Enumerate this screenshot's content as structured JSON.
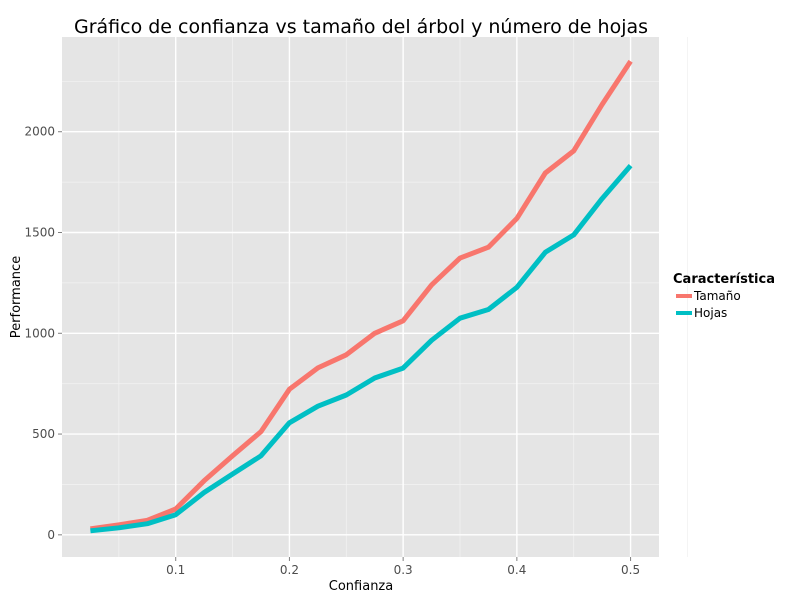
{
  "chart_data": {
    "type": "line",
    "title": "Gráfico de confianza vs tamaño del árbol y número de hojas",
    "xlabel": "Confianza",
    "ylabel": "Performance",
    "x": [
      0.025,
      0.05,
      0.075,
      0.1,
      0.125,
      0.15,
      0.175,
      0.2,
      0.225,
      0.25,
      0.275,
      0.3,
      0.325,
      0.35,
      0.375,
      0.4,
      0.425,
      0.45,
      0.475,
      0.5
    ],
    "xlim": [
      0.0,
      0.525
    ],
    "ylim": [
      -110,
      2470
    ],
    "xticks": [
      0.1,
      0.2,
      0.3,
      0.4,
      0.5
    ],
    "xtick_labels": [
      "0.1",
      "0.2",
      "0.3",
      "0.4",
      "0.5"
    ],
    "yticks": [
      0,
      500,
      1000,
      1500,
      2000
    ],
    "ytick_labels": [
      "0",
      "500",
      "1000",
      "1500",
      "2000"
    ],
    "grid": true,
    "legend": {
      "title": "Característica",
      "position": "right"
    },
    "series": [
      {
        "name": "Tamaño",
        "color": "#f8766d",
        "values": [
          30,
          50,
          72,
          128,
          268,
          392,
          512,
          722,
          828,
          893,
          1000,
          1062,
          1240,
          1373,
          1427,
          1570,
          1795,
          1905,
          2135,
          2350
        ]
      },
      {
        "name": "Hojas",
        "color": "#00bfc4",
        "values": [
          20,
          35,
          55,
          100,
          210,
          302,
          392,
          556,
          638,
          694,
          778,
          827,
          965,
          1075,
          1118,
          1228,
          1402,
          1488,
          1668,
          1832
        ]
      }
    ]
  },
  "colors": {
    "panel_background": "#e5e5e5",
    "major_grid": "#ffffff",
    "minor_grid": "#f2f2f2",
    "tick_mark": "#7f7f7f"
  }
}
